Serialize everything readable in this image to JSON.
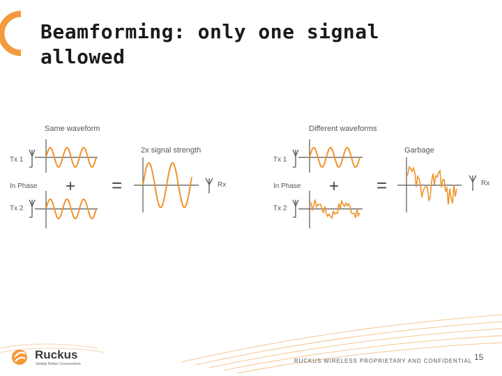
{
  "slide": {
    "title_line1": "Beamforming:  only one signal",
    "title_line2": "allowed",
    "footer": "RUCKUS WIRELESS PROPRIETARY AND CONFIDENTIAL",
    "page_number": "15",
    "logo_name": "Ruckus",
    "logo_tagline": "Simply Better Connections"
  },
  "colors": {
    "wave": "#f0922b",
    "accent": "#f39a3c",
    "axis": "#555555",
    "text": "#555555"
  },
  "left_panel": {
    "heading": "Same waveform",
    "tx1": "Tx 1",
    "in_phase": "In Phase",
    "tx2": "Tx 2",
    "plus": "+",
    "equals": "=",
    "result_label": "2x signal strength",
    "rx": "Rx"
  },
  "right_panel": {
    "heading": "Different waveforms",
    "tx1": "Tx 1",
    "in_phase": "In Phase",
    "tx2": "Tx 2",
    "plus": "+",
    "equals": "=",
    "result_label": "Garbage",
    "rx": "Rx"
  }
}
